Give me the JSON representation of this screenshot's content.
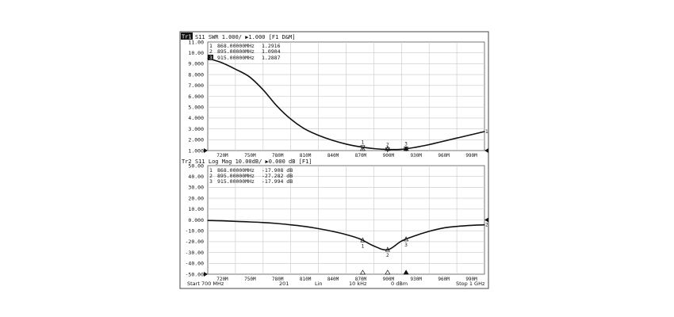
{
  "trace1": {
    "tag": "Tr1",
    "header": "S11 SWR 1.000/ ▶1.000 [F1 D&M]",
    "y_ticks": [
      "11.00",
      "10.00",
      "9.000",
      "8.000",
      "7.000",
      "6.000",
      "5.000",
      "4.000",
      "3.000",
      "2.000",
      "1.000"
    ],
    "x_ticks": [
      "720M",
      "750M",
      "780M",
      "810M",
      "840M",
      "870M",
      "900M",
      "930M",
      "960M",
      "990M"
    ],
    "markers": [
      {
        "index": "1",
        "freq": "868.00000MHz",
        "value": "1.2916"
      },
      {
        "index": "2",
        "freq": "895.00000MHz",
        "value": "1.0904"
      },
      {
        "index": "3",
        "freq": "915.00000MHz",
        "value": "1.2887"
      }
    ],
    "active_marker_label": "3",
    "end_marker_label": "1"
  },
  "trace2": {
    "tag": "Tr2",
    "header": "S11 Log Mag 10.00dB/ ▶0.000 dB [F1]",
    "y_ticks": [
      "50.00",
      "40.00",
      "30.00",
      "20.00",
      "10.00",
      "0.000",
      "-10.00",
      "-20.00",
      "-30.00",
      "-40.00",
      "-50.00"
    ],
    "x_ticks": [
      "720M",
      "750M",
      "780M",
      "810M",
      "840M",
      "870M",
      "900M",
      "930M",
      "960M",
      "990M"
    ],
    "markers": [
      {
        "index": "1",
        "freq": "868.00000MHz",
        "value": "-17.908 dB"
      },
      {
        "index": "2",
        "freq": "895.00000MHz",
        "value": "-27.282 dB"
      },
      {
        "index": "3",
        "freq": "915.00000MHz",
        "value": "-17.994 dB"
      }
    ],
    "end_marker_label": "2"
  },
  "status_bar": {
    "start": "Start 700 MHz",
    "points": "201",
    "sweep_type": "Lin",
    "ifbw": "10 kHz",
    "power": "0 dBm",
    "stop": "Stop 1 GHz"
  },
  "chart_data": [
    {
      "type": "line",
      "title": "S11 SWR",
      "xlabel": "",
      "ylabel": "",
      "x_unit": "MHz",
      "xlim": [
        700,
        1000
      ],
      "ylim": [
        1,
        11
      ],
      "grid": true,
      "x": [
        700,
        715,
        730,
        745,
        760,
        775,
        790,
        805,
        820,
        835,
        850,
        865,
        880,
        895,
        910,
        925,
        940,
        955,
        970,
        985,
        1000
      ],
      "series": [
        {
          "values": [
            9.5,
            9.1,
            8.5,
            7.8,
            6.6,
            5.1,
            3.9,
            3.0,
            2.4,
            1.95,
            1.6,
            1.35,
            1.18,
            1.1,
            1.12,
            1.3,
            1.55,
            1.85,
            2.15,
            2.45,
            2.75
          ]
        }
      ]
    },
    {
      "type": "line",
      "title": "S11 Log Mag",
      "xlabel": "",
      "ylabel": "",
      "x_unit": "MHz",
      "xlim": [
        700,
        1000
      ],
      "ylim": [
        -50,
        50
      ],
      "grid": true,
      "x": [
        700,
        715,
        730,
        745,
        760,
        775,
        790,
        805,
        820,
        835,
        850,
        865,
        880,
        895,
        910,
        925,
        940,
        955,
        970,
        985,
        1000
      ],
      "series": [
        {
          "values": [
            -0.5,
            -0.8,
            -1.3,
            -1.8,
            -2.4,
            -3.3,
            -4.5,
            -6.0,
            -8.0,
            -10.5,
            -13.5,
            -17.5,
            -24.0,
            -27.5,
            -19.5,
            -14.5,
            -10.5,
            -7.5,
            -6.0,
            -5.0,
            -4.5
          ]
        }
      ]
    }
  ]
}
